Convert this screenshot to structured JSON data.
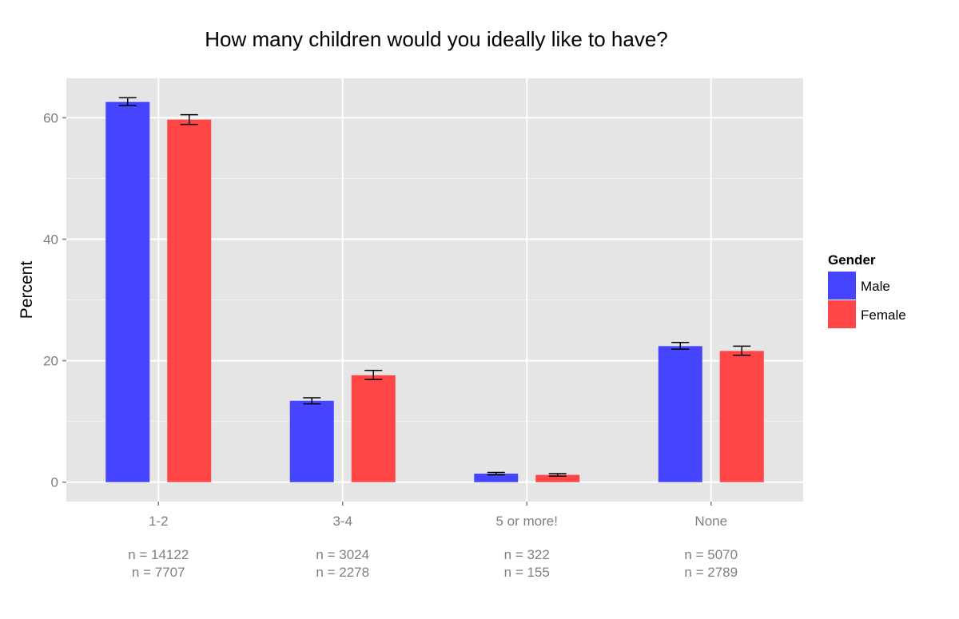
{
  "chart_data": {
    "type": "bar",
    "title": "How many children would you ideally like to have?",
    "xlabel": "",
    "ylabel": "Percent",
    "ylim": [
      -3.2,
      66.5
    ],
    "yticks": [
      0,
      20,
      40,
      60
    ],
    "ytick_labels": [
      "0",
      "20",
      "40",
      "60"
    ],
    "grid": true,
    "categories": [
      "1-2",
      "3-4",
      "5 or more!",
      "None"
    ],
    "series": [
      {
        "name": "Male",
        "color": "#4545ff",
        "values": [
          62.6,
          13.4,
          1.4,
          22.4
        ],
        "error_low": [
          62.0,
          12.9,
          1.2,
          21.9
        ],
        "error_high": [
          63.3,
          13.9,
          1.6,
          23.0
        ]
      },
      {
        "name": "Female",
        "color": "#ff4545",
        "values": [
          59.7,
          17.6,
          1.2,
          21.6
        ],
        "error_low": [
          58.9,
          16.9,
          1.0,
          20.9
        ],
        "error_high": [
          60.5,
          18.4,
          1.4,
          22.4
        ]
      }
    ],
    "n_labels": [
      [
        "n = 14122",
        "n = 7707"
      ],
      [
        "n = 3024",
        "n = 2278"
      ],
      [
        "n = 322",
        "n = 155"
      ],
      [
        "n = 5070",
        "n = 2789"
      ]
    ],
    "legend": {
      "title": "Gender",
      "position": "right",
      "entries": [
        "Male",
        "Female"
      ]
    }
  }
}
